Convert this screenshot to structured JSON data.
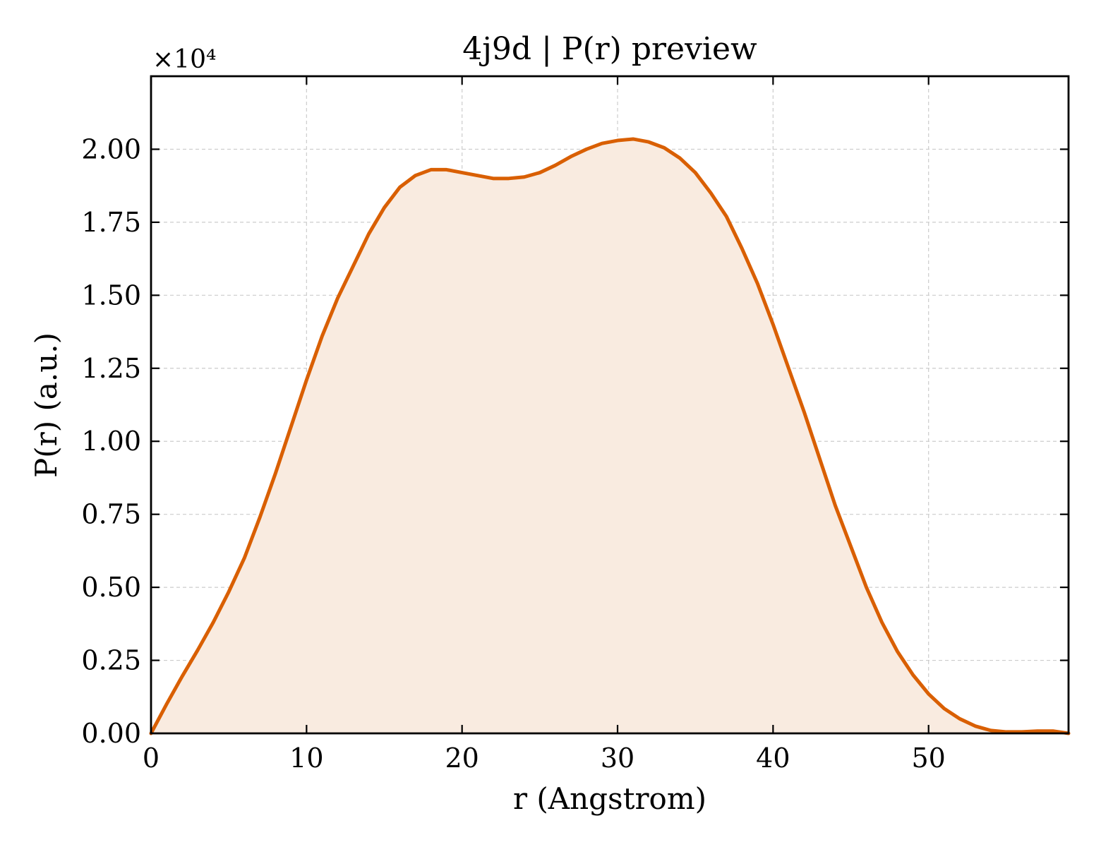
{
  "chart_data": {
    "type": "area",
    "title": "4j9d | P(r) preview",
    "xlabel": "r (Angstrom)",
    "ylabel": "P(r) (a.u.)",
    "y_offset_label": "×10⁴",
    "xlim": [
      0,
      59
    ],
    "ylim": [
      0,
      22500
    ],
    "xticks": [
      0,
      10,
      20,
      30,
      40,
      50
    ],
    "xtick_labels": [
      "0",
      "10",
      "20",
      "30",
      "40",
      "50"
    ],
    "yticks": [
      0,
      2500,
      5000,
      7500,
      10000,
      12500,
      15000,
      17500,
      20000
    ],
    "ytick_labels": [
      "0.00",
      "0.25",
      "0.50",
      "0.75",
      "1.00",
      "1.25",
      "1.50",
      "1.75",
      "2.00"
    ],
    "grid": true,
    "colors": {
      "line": "#d95f02",
      "fill": "#f9ebe0"
    },
    "series": [
      {
        "x": [
          0,
          1,
          2,
          3,
          4,
          5,
          6,
          7,
          8,
          9,
          10,
          11,
          12,
          13,
          14,
          15,
          16,
          17,
          18,
          19,
          20,
          21,
          22,
          23,
          24,
          25,
          26,
          27,
          28,
          29,
          30,
          31,
          32,
          33,
          34,
          35,
          36,
          37,
          38,
          39,
          40,
          41,
          42,
          43,
          44,
          45,
          46,
          47,
          48,
          49,
          50,
          51,
          52,
          53,
          54,
          55,
          56,
          57,
          58,
          59
        ],
        "y": [
          0,
          1000,
          1950,
          2850,
          3800,
          4850,
          6000,
          7400,
          8900,
          10500,
          12100,
          13600,
          14900,
          16000,
          17100,
          18000,
          18700,
          19100,
          19300,
          19300,
          19200,
          19100,
          19000,
          19000,
          19050,
          19200,
          19450,
          19750,
          20000,
          20200,
          20300,
          20350,
          20250,
          20050,
          19700,
          19200,
          18500,
          17700,
          16600,
          15400,
          14000,
          12500,
          11000,
          9400,
          7800,
          6400,
          5000,
          3800,
          2800,
          2000,
          1350,
          850,
          500,
          250,
          100,
          50,
          50,
          80,
          80,
          0
        ]
      }
    ]
  }
}
